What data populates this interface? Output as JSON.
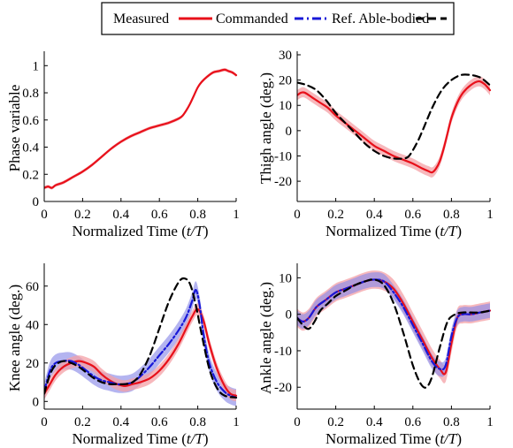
{
  "colors": {
    "measured": "#e8101a",
    "measured_band": "#f4a0a6",
    "commanded": "#1818d8",
    "commanded_band": "#8c8ce8",
    "reference": "#000000"
  },
  "legend": {
    "entries": [
      {
        "label": "Measured",
        "style": "none"
      },
      {
        "label": "Commanded",
        "style": "solid-red"
      },
      {
        "label": "Ref. Able-bodied",
        "style": "dashdot-blue"
      },
      {
        "label": "",
        "style": "dashed-black"
      }
    ]
  },
  "chart_data": [
    {
      "type": "line",
      "xlabel": "Normalized Time (t/T)",
      "ylabel": "Phase variable",
      "xlim": [
        0,
        1
      ],
      "ylim": [
        0,
        1.08
      ],
      "xticks": [
        0,
        0.2,
        0.4,
        0.6,
        0.8,
        1
      ],
      "xtick_labels": [
        "0",
        "0.2",
        "0.4",
        "0.6",
        "0.8",
        "1"
      ],
      "yticks": [
        0,
        0.2,
        0.4,
        0.6,
        0.8,
        1
      ],
      "ytick_labels": [
        "0",
        "0.2",
        "0.4",
        "0.6",
        "0.8",
        "1"
      ],
      "series": [
        {
          "name": "Measured",
          "role": "measured",
          "band": 0.012,
          "x": [
            0,
            0.02,
            0.04,
            0.06,
            0.1,
            0.15,
            0.2,
            0.25,
            0.3,
            0.35,
            0.4,
            0.45,
            0.5,
            0.55,
            0.6,
            0.65,
            0.7,
            0.72,
            0.74,
            0.76,
            0.78,
            0.8,
            0.82,
            0.85,
            0.88,
            0.91,
            0.94,
            0.96,
            0.98,
            1.0
          ],
          "y": [
            0.1,
            0.11,
            0.1,
            0.12,
            0.14,
            0.18,
            0.22,
            0.27,
            0.33,
            0.39,
            0.44,
            0.48,
            0.51,
            0.54,
            0.56,
            0.58,
            0.61,
            0.63,
            0.67,
            0.72,
            0.78,
            0.84,
            0.88,
            0.92,
            0.95,
            0.96,
            0.97,
            0.96,
            0.95,
            0.93
          ]
        }
      ]
    },
    {
      "type": "line",
      "xlabel": "Normalized Time (t/T)",
      "ylabel": "Thigh angle (deg.)",
      "xlim": [
        0,
        1
      ],
      "ylim": [
        -28,
        30
      ],
      "xticks": [
        0,
        0.2,
        0.4,
        0.6,
        0.8,
        1
      ],
      "xtick_labels": [
        "0",
        "0.2",
        "0.4",
        "0.6",
        "0.8",
        "1"
      ],
      "yticks": [
        -20,
        -10,
        0,
        10,
        20,
        30
      ],
      "ytick_labels": [
        "-20",
        "-10",
        "0",
        "10",
        "20",
        "30"
      ],
      "series": [
        {
          "name": "Measured",
          "role": "measured",
          "band": 2.0,
          "x": [
            0,
            0.02,
            0.04,
            0.08,
            0.12,
            0.16,
            0.2,
            0.25,
            0.3,
            0.35,
            0.4,
            0.45,
            0.5,
            0.55,
            0.6,
            0.65,
            0.68,
            0.7,
            0.72,
            0.74,
            0.76,
            0.78,
            0.8,
            0.83,
            0.86,
            0.9,
            0.94,
            0.97,
            1.0
          ],
          "y": [
            14,
            15,
            15,
            13,
            11,
            9,
            6,
            3,
            0,
            -3,
            -6,
            -8,
            -10,
            -11.5,
            -13,
            -15,
            -16,
            -16.5,
            -15,
            -12,
            -7,
            -1,
            5,
            11,
            15,
            18,
            19.5,
            18.5,
            16
          ]
        },
        {
          "name": "Ref. Able-bodied",
          "role": "reference",
          "x": [
            0,
            0.05,
            0.1,
            0.15,
            0.2,
            0.25,
            0.3,
            0.35,
            0.4,
            0.45,
            0.5,
            0.55,
            0.58,
            0.62,
            0.65,
            0.7,
            0.75,
            0.8,
            0.85,
            0.9,
            0.95,
            1.0
          ],
          "y": [
            19,
            18,
            16,
            12,
            7,
            3,
            -1,
            -5,
            -8,
            -10,
            -11,
            -11,
            -10,
            -5,
            0,
            9,
            16,
            20,
            22,
            22,
            21,
            18
          ]
        }
      ]
    },
    {
      "type": "line",
      "xlabel": "Normalized Time (t/T)",
      "ylabel": "Knee angle (deg.)",
      "xlim": [
        0,
        1
      ],
      "ylim": [
        -4,
        70
      ],
      "xticks": [
        0,
        0.2,
        0.4,
        0.6,
        0.8,
        1
      ],
      "xtick_labels": [
        "0",
        "0.2",
        "0.4",
        "0.6",
        "0.8",
        "1"
      ],
      "yticks": [
        0,
        20,
        40,
        60
      ],
      "ytick_labels": [
        "0",
        "20",
        "40",
        "60"
      ],
      "series": [
        {
          "name": "Commanded",
          "role": "commanded",
          "band": 4.5,
          "x": [
            0,
            0.03,
            0.06,
            0.1,
            0.14,
            0.18,
            0.22,
            0.26,
            0.3,
            0.34,
            0.38,
            0.42,
            0.46,
            0.5,
            0.55,
            0.6,
            0.65,
            0.7,
            0.74,
            0.77,
            0.79,
            0.81,
            0.83,
            0.86,
            0.9,
            0.94,
            0.97,
            1.0
          ],
          "y": [
            5,
            16,
            20,
            21,
            21,
            19,
            16,
            13,
            11,
            10,
            9,
            9,
            10,
            13,
            18,
            24,
            30,
            37,
            44,
            52,
            58,
            50,
            35,
            20,
            10,
            5,
            3,
            2
          ]
        },
        {
          "name": "Measured",
          "role": "measured",
          "band": 3.0,
          "x": [
            0,
            0.03,
            0.06,
            0.1,
            0.14,
            0.18,
            0.22,
            0.26,
            0.3,
            0.34,
            0.38,
            0.42,
            0.46,
            0.5,
            0.55,
            0.6,
            0.65,
            0.7,
            0.74,
            0.77,
            0.8,
            0.83,
            0.86,
            0.9,
            0.94,
            0.97,
            1.0
          ],
          "y": [
            4,
            9,
            14,
            18,
            20,
            21,
            20,
            18,
            14,
            11,
            9,
            8,
            9,
            10,
            12,
            16,
            22,
            30,
            38,
            44,
            48,
            42,
            30,
            17,
            8,
            4,
            3
          ]
        },
        {
          "name": "Ref. Able-bodied",
          "role": "reference",
          "x": [
            0,
            0.03,
            0.06,
            0.1,
            0.14,
            0.18,
            0.22,
            0.26,
            0.3,
            0.34,
            0.38,
            0.42,
            0.46,
            0.5,
            0.55,
            0.6,
            0.65,
            0.7,
            0.73,
            0.76,
            0.79,
            0.82,
            0.86,
            0.9,
            0.94,
            1.0
          ],
          "y": [
            4,
            14,
            19,
            21,
            20,
            18,
            15,
            12,
            10,
            9,
            9,
            9,
            10,
            14,
            24,
            38,
            52,
            62,
            64,
            61,
            50,
            35,
            17,
            7,
            3,
            2
          ]
        }
      ]
    },
    {
      "type": "line",
      "xlabel": "Normalized Time (t/T)",
      "ylabel": "Ankle angle (deg.)",
      "xlim": [
        0,
        1
      ],
      "ylim": [
        -26,
        13
      ],
      "xticks": [
        0,
        0.2,
        0.4,
        0.6,
        0.8,
        1
      ],
      "xtick_labels": [
        "0",
        "0.2",
        "0.4",
        "0.6",
        "0.8",
        "1"
      ],
      "yticks": [
        -20,
        -10,
        0,
        10
      ],
      "ytick_labels": [
        "-20",
        "-10",
        "0",
        "10"
      ],
      "series": [
        {
          "name": "Measured",
          "role": "measured",
          "band": 2.5,
          "x": [
            0,
            0.03,
            0.06,
            0.1,
            0.15,
            0.2,
            0.25,
            0.3,
            0.35,
            0.4,
            0.45,
            0.5,
            0.55,
            0.6,
            0.65,
            0.7,
            0.74,
            0.77,
            0.8,
            0.83,
            0.86,
            0.9,
            0.95,
            1.0
          ],
          "y": [
            -1,
            -2,
            -1,
            2,
            4,
            6,
            7,
            8,
            9,
            9.5,
            9,
            7,
            3,
            -2,
            -7,
            -12,
            -15,
            -16,
            -8,
            -1,
            0,
            0,
            0.5,
            1
          ]
        },
        {
          "name": "Commanded",
          "role": "commanded",
          "band": 2.0,
          "x": [
            0,
            0.03,
            0.06,
            0.1,
            0.15,
            0.2,
            0.25,
            0.3,
            0.35,
            0.4,
            0.45,
            0.5,
            0.55,
            0.6,
            0.65,
            0.7,
            0.74,
            0.77,
            0.8,
            0.83,
            0.86,
            0.9,
            0.95,
            1.0
          ],
          "y": [
            -1,
            -2,
            -1,
            2,
            4,
            6,
            7,
            8,
            9,
            9.5,
            9,
            6,
            2,
            -3,
            -8,
            -13,
            -15,
            -14,
            -6,
            -1,
            0,
            0,
            0.5,
            1
          ]
        },
        {
          "name": "Ref. Able-bodied",
          "role": "reference",
          "x": [
            0,
            0.03,
            0.06,
            0.09,
            0.12,
            0.16,
            0.2,
            0.25,
            0.3,
            0.35,
            0.4,
            0.45,
            0.5,
            0.55,
            0.6,
            0.64,
            0.67,
            0.7,
            0.74,
            0.78,
            0.82,
            0.86,
            0.9,
            0.95,
            1.0
          ],
          "y": [
            -1,
            -3,
            -4,
            -2,
            1,
            3,
            5,
            6.5,
            8,
            9,
            9.5,
            8,
            3,
            -5,
            -14,
            -19,
            -20,
            -17,
            -9,
            -2,
            0,
            0.5,
            0.5,
            0.5,
            1
          ]
        }
      ]
    }
  ]
}
